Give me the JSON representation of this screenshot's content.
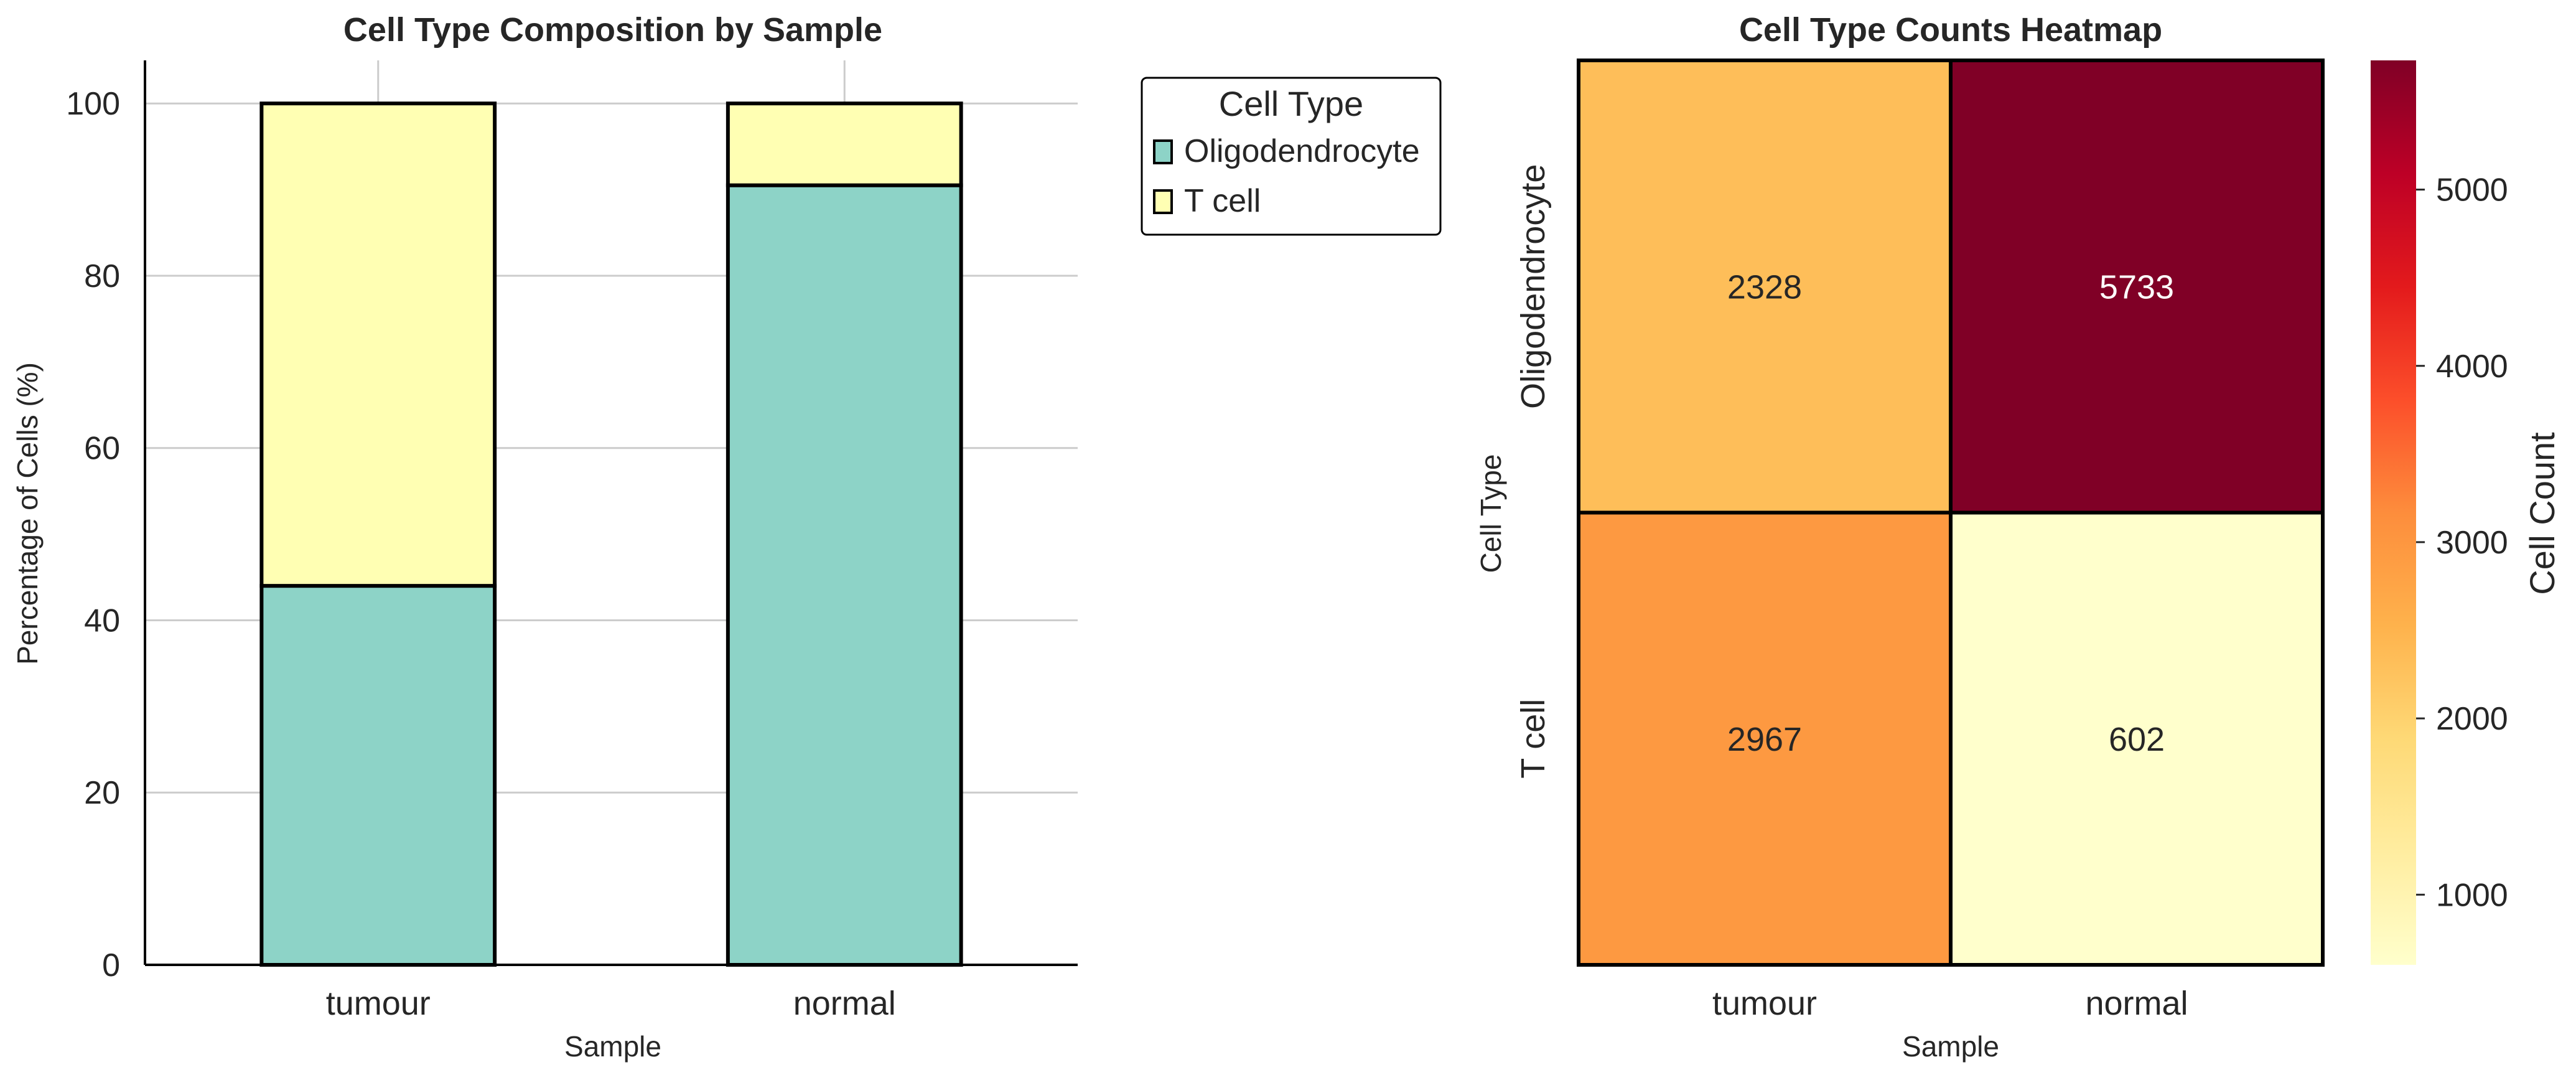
{
  "chart_data": [
    {
      "type": "bar",
      "stacked": true,
      "title": "Cell Type Composition by Sample",
      "xlabel": "Sample",
      "ylabel": "Percentage of Cells (%)",
      "ylim": [
        0,
        105
      ],
      "yticks": [
        "0",
        "20",
        "40",
        "60",
        "80",
        "100"
      ],
      "grid": "horizontal",
      "categories": [
        "tumour",
        "normal"
      ],
      "series": [
        {
          "name": "Oligodendrocyte",
          "values": [
            44.0,
            90.5
          ],
          "color": "#8dd3c7"
        },
        {
          "name": "T cell",
          "values": [
            56.0,
            9.5
          ],
          "color": "#ffffb3"
        }
      ],
      "legend": {
        "title": "Cell Type",
        "placement": "outside upper right",
        "entries": [
          "Oligodendrocyte",
          "T cell"
        ]
      }
    },
    {
      "type": "heatmap",
      "title": "Cell Type Counts Heatmap",
      "xlabel": "Sample",
      "ylabel": "Cell Type",
      "x_categories": [
        "tumour",
        "normal"
      ],
      "y_categories": [
        "Oligodendrocyte",
        "T cell"
      ],
      "values": [
        [
          2328,
          5733
        ],
        [
          2967,
          602
        ]
      ],
      "colormap": "YlOrRd",
      "colorbar": {
        "label": "Cell Count",
        "range": [
          602,
          5733
        ],
        "ticks": [
          1000,
          2000,
          3000,
          4000,
          5000
        ]
      }
    }
  ]
}
